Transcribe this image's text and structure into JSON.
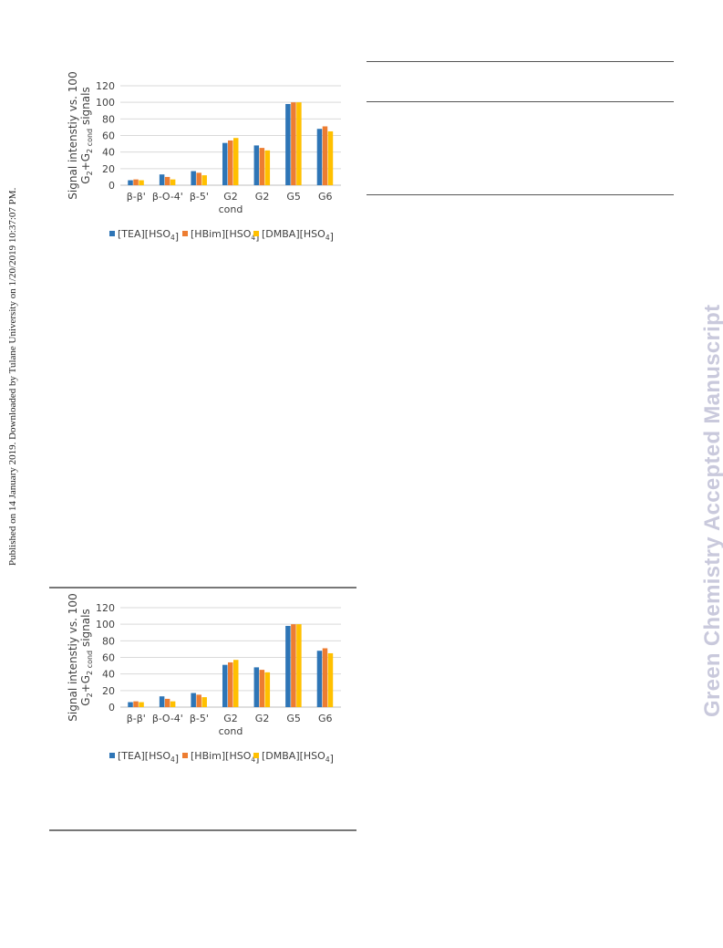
{
  "page": {
    "side_note": "Published on 14 January 2019. Downloaded by Tulane University on 1/20/2019 10:37:07 PM.",
    "watermark": "Green Chemistry Accepted Manuscript"
  },
  "colors": {
    "blue": "#2E75B6",
    "orange": "#ED7D31",
    "yellow": "#FFC000"
  },
  "chart_data": [
    {
      "type": "bar",
      "categories": [
        "β-β'",
        "β-O-4'",
        "β-5'",
        "G2 cond",
        "G2",
        "G5",
        "G6"
      ],
      "series": [
        {
          "name": "[TEA][HSO4]",
          "values": [
            6,
            13,
            17,
            51,
            48,
            98,
            68
          ],
          "color": "#2E75B6"
        },
        {
          "name": "[HBim][HSO4]",
          "values": [
            7,
            10,
            15,
            54,
            45,
            100,
            71
          ],
          "color": "#ED7D31"
        },
        {
          "name": "[DMBA][HSO4]",
          "values": [
            6,
            7,
            12,
            57,
            42,
            100,
            65
          ],
          "color": "#FFC000"
        }
      ],
      "ylabel": "Signal intenstiy vs. 100 G2+G2 cond signals",
      "ylim": [
        0,
        120
      ],
      "yticks": [
        0,
        20,
        40,
        60,
        80,
        100,
        120
      ],
      "grid": true,
      "legend": "bottom"
    },
    {
      "type": "bar",
      "categories": [
        "β-β'",
        "β-O-4'",
        "β-5'",
        "G2 cond",
        "G2",
        "G5",
        "G6"
      ],
      "series": [
        {
          "name": "[TEA][HSO4]",
          "values": [
            6,
            13,
            17,
            51,
            48,
            98,
            68
          ],
          "color": "#2E75B6"
        },
        {
          "name": "[HBim][HSO4]",
          "values": [
            7,
            10,
            15,
            54,
            45,
            100,
            71
          ],
          "color": "#ED7D31"
        },
        {
          "name": "[DMBA][HSO4]",
          "values": [
            6,
            7,
            12,
            57,
            42,
            100,
            65
          ],
          "color": "#FFC000"
        }
      ],
      "ylabel": "Signal intenstiy vs. 100 G2+G2 cond signals",
      "ylim": [
        0,
        120
      ],
      "yticks": [
        0,
        20,
        40,
        60,
        80,
        100,
        120
      ],
      "grid": true,
      "legend": "bottom"
    }
  ]
}
